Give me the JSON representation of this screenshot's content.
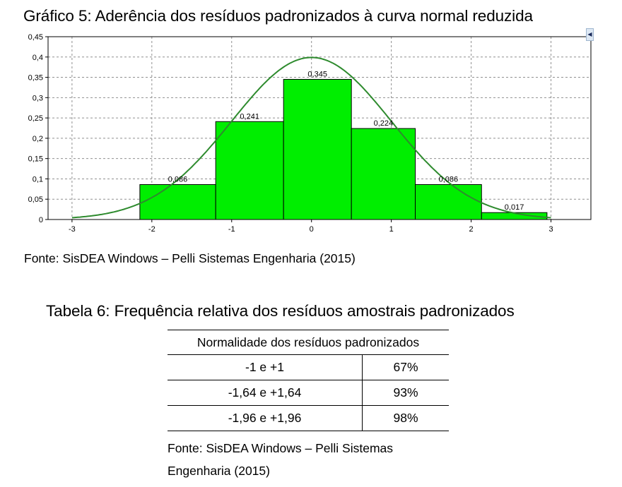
{
  "chart_title": "Gráfico 5: Aderência dos resíduos padronizados à curva normal reduzida",
  "chart_source": "Fonte: SisDEA Windows – Pelli Sistemas Engenharia (2015)",
  "chart_data": {
    "type": "bar",
    "subtype": "histogram-with-normal-curve",
    "xlim": [
      -3.3,
      3.5
    ],
    "ylim": [
      0,
      0.45
    ],
    "x_ticks": [
      -3,
      -2,
      -1,
      0,
      1,
      2,
      3
    ],
    "x_tick_labels": [
      "-3",
      "-2",
      "-1",
      "0",
      "1",
      "2",
      "3"
    ],
    "y_ticks": [
      0,
      0.05,
      0.1,
      0.15,
      0.2,
      0.25,
      0.3,
      0.35,
      0.4,
      0.45
    ],
    "y_tick_labels": [
      "0",
      "0,05",
      "0,1",
      "0,15",
      "0,2",
      "0,25",
      "0,3",
      "0,35",
      "0,4",
      "0,45"
    ],
    "grid": true,
    "bins": [
      {
        "x0": -2.15,
        "x1": -1.2,
        "value": 0.086,
        "label": "0,086"
      },
      {
        "x0": -1.2,
        "x1": -0.35,
        "value": 0.241,
        "label": "0,241"
      },
      {
        "x0": -0.35,
        "x1": 0.5,
        "value": 0.345,
        "label": "0,345"
      },
      {
        "x0": 0.5,
        "x1": 1.3,
        "value": 0.224,
        "label": "0,224"
      },
      {
        "x0": 1.3,
        "x1": 2.13,
        "value": 0.086,
        "label": "0,086"
      },
      {
        "x0": 2.13,
        "x1": 2.95,
        "value": 0.017,
        "label": "0,017"
      }
    ],
    "curve": {
      "type": "standard-normal",
      "x_range": [
        -3,
        3
      ],
      "peak": 0.4
    },
    "colors": {
      "bars": "#00ee00",
      "bar_stroke": "#000000",
      "curve": "#2e8b2e",
      "grid": "#909090"
    }
  },
  "table_title": "Tabela 6: Frequência relativa dos resíduos amostrais padronizados",
  "table": {
    "header": "Normalidade dos resíduos padronizados",
    "rows": [
      {
        "range": "-1 e +1",
        "value": "67%"
      },
      {
        "range": "-1,64 e +1,64",
        "value": "93%"
      },
      {
        "range": "-1,96 e +1,96",
        "value": "98%"
      }
    ]
  },
  "table_source": "Fonte: SisDEA Windows – Pelli Sistemas Engenharia (2015)",
  "scroll_icon": "triangle-left-icon"
}
